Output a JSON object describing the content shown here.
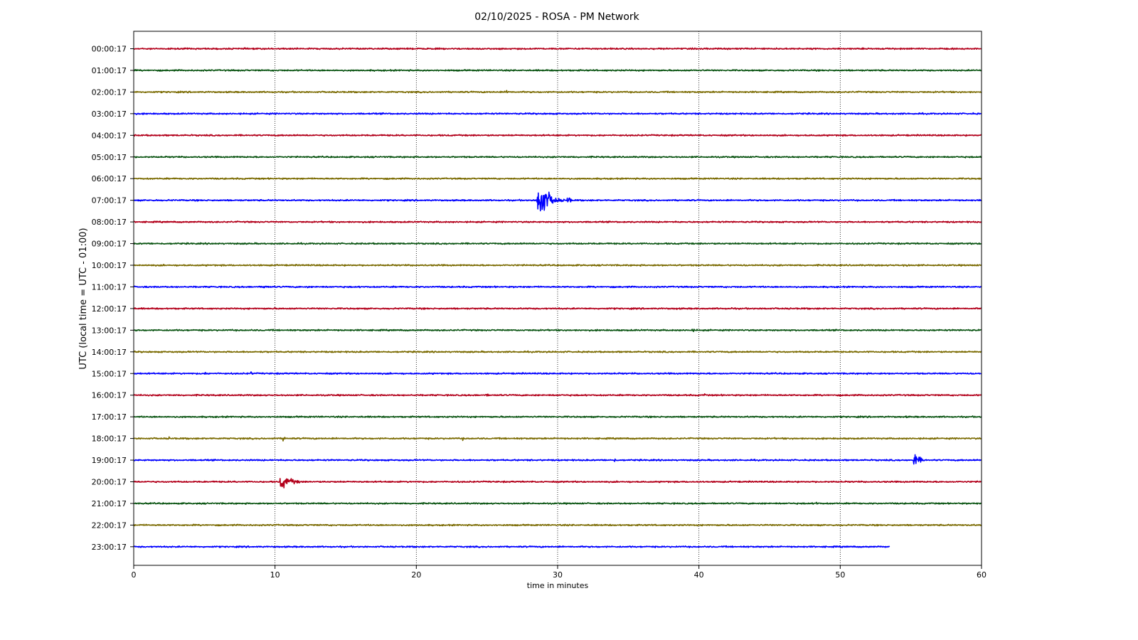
{
  "chart_data": {
    "type": "line",
    "title": "02/10/2025 - ROSA - PM Network",
    "xlabel": "time in minutes",
    "ylabel": "UTC (local time = UTC - 01:00)",
    "xlim": [
      0,
      60
    ],
    "xticks": [
      0,
      10,
      20,
      30,
      40,
      50,
      60
    ],
    "grid_x": true,
    "grid_y": false,
    "legend": "none",
    "trace_colors": [
      "#b3001b",
      "#0b5513",
      "#7a6a00",
      "#0000ff"
    ],
    "rows": [
      {
        "label": "00:00:17",
        "end_minute": 60,
        "events": []
      },
      {
        "label": "01:00:17",
        "end_minute": 60,
        "events": []
      },
      {
        "label": "02:00:17",
        "end_minute": 60,
        "events": [
          {
            "minute": 26.4,
            "amp": 0.22,
            "dur": 0.4
          }
        ]
      },
      {
        "label": "03:00:17",
        "end_minute": 60,
        "events": []
      },
      {
        "label": "04:00:17",
        "end_minute": 60,
        "events": []
      },
      {
        "label": "05:00:17",
        "end_minute": 60,
        "events": [
          {
            "minute": 40.0,
            "amp": 0.06,
            "dur": 1.5
          }
        ]
      },
      {
        "label": "06:00:17",
        "end_minute": 60,
        "events": []
      },
      {
        "label": "07:00:17",
        "end_minute": 60,
        "events": [
          {
            "minute": 28.6,
            "amp": 1.9,
            "dur": 1.6
          },
          {
            "minute": 30.7,
            "amp": 0.35,
            "dur": 0.6
          },
          {
            "minute": 1.6,
            "amp": 0.08,
            "dur": 0.3
          }
        ]
      },
      {
        "label": "08:00:17",
        "end_minute": 60,
        "events": []
      },
      {
        "label": "09:00:17",
        "end_minute": 60,
        "events": [
          {
            "minute": 10.7,
            "amp": 0.1,
            "dur": 0.3
          }
        ]
      },
      {
        "label": "10:00:17",
        "end_minute": 60,
        "events": [
          {
            "minute": 54.5,
            "amp": 0.1,
            "dur": 2.0
          }
        ]
      },
      {
        "label": "11:00:17",
        "end_minute": 60,
        "events": [
          {
            "minute": 9.2,
            "amp": 0.14,
            "dur": 1.2
          },
          {
            "minute": 12.3,
            "amp": 0.08,
            "dur": 0.5
          }
        ]
      },
      {
        "label": "12:00:17",
        "end_minute": 60,
        "events": [
          {
            "minute": 44.7,
            "amp": 0.2,
            "dur": 0.3
          },
          {
            "minute": 38.4,
            "amp": 0.1,
            "dur": 0.4
          },
          {
            "minute": 42.3,
            "amp": 0.1,
            "dur": 0.4
          }
        ]
      },
      {
        "label": "13:00:17",
        "end_minute": 60,
        "events": [
          {
            "minute": 39.5,
            "amp": 0.1,
            "dur": 1.5
          }
        ]
      },
      {
        "label": "14:00:17",
        "end_minute": 60,
        "events": [
          {
            "minute": 47.8,
            "amp": 0.08,
            "dur": 0.5
          }
        ]
      },
      {
        "label": "15:00:17",
        "end_minute": 60,
        "events": [
          {
            "minute": 5.1,
            "amp": 0.12,
            "dur": 0.3
          },
          {
            "minute": 8.3,
            "amp": 0.12,
            "dur": 0.6
          }
        ]
      },
      {
        "label": "16:00:17",
        "end_minute": 60,
        "events": [
          {
            "minute": 25.0,
            "amp": 0.1,
            "dur": 0.8
          },
          {
            "minute": 40.4,
            "amp": 0.12,
            "dur": 0.2
          }
        ]
      },
      {
        "label": "17:00:17",
        "end_minute": 60,
        "events": [
          {
            "minute": 54.6,
            "amp": 0.1,
            "dur": 0.4
          }
        ]
      },
      {
        "label": "18:00:17",
        "end_minute": 60,
        "events": [
          {
            "minute": 10.6,
            "amp": 0.25,
            "dur": 0.4
          },
          {
            "minute": 2.5,
            "amp": 0.12,
            "dur": 0.3
          },
          {
            "minute": 23.3,
            "amp": 0.12,
            "dur": 0.3
          },
          {
            "minute": 55.8,
            "amp": 0.12,
            "dur": 0.3
          }
        ]
      },
      {
        "label": "19:00:17",
        "end_minute": 60,
        "events": [
          {
            "minute": 55.2,
            "amp": 0.48,
            "dur": 1.2
          },
          {
            "minute": 34.0,
            "amp": 0.2,
            "dur": 0.3
          },
          {
            "minute": 33.5,
            "amp": 0.1,
            "dur": 0.4
          }
        ]
      },
      {
        "label": "20:00:17",
        "end_minute": 60,
        "events": [
          {
            "minute": 10.4,
            "amp": 0.55,
            "dur": 2.0
          }
        ]
      },
      {
        "label": "21:00:17",
        "end_minute": 60,
        "events": [
          {
            "minute": 48.3,
            "amp": 0.2,
            "dur": 0.3
          }
        ]
      },
      {
        "label": "22:00:17",
        "end_minute": 60,
        "events": []
      },
      {
        "label": "23:00:17",
        "end_minute": 53.5,
        "events": []
      }
    ]
  }
}
